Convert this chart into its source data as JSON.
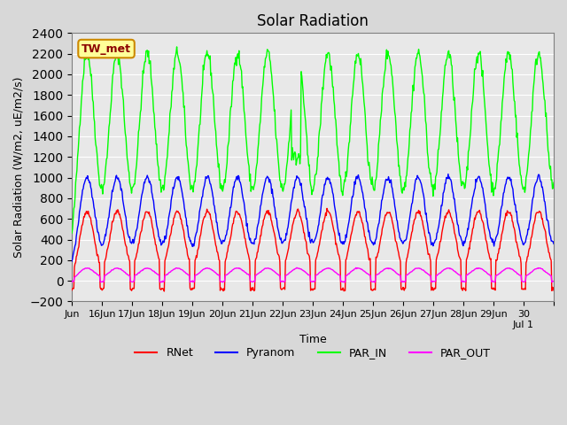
{
  "title": "Solar Radiation",
  "ylabel": "Solar Radiation (W/m2, uE/m2/s)",
  "xlabel": "Time",
  "ylim": [
    -200,
    2400
  ],
  "yticks": [
    -200,
    0,
    200,
    400,
    600,
    800,
    1000,
    1200,
    1400,
    1600,
    1800,
    2000,
    2200,
    2400
  ],
  "annotation_text": "TW_met",
  "annotation_box_facecolor": "#FFFF99",
  "annotation_box_edgecolor": "#CC8800",
  "legend_entries": [
    "RNet",
    "Pyranom",
    "PAR_IN",
    "PAR_OUT"
  ],
  "line_colors": {
    "RNet": "red",
    "Pyranom": "blue",
    "PAR_IN": "lime",
    "PAR_OUT": "magenta"
  },
  "fig_facecolor": "#D8D8D8",
  "ax_facecolor": "#E8E8E8",
  "grid_color": "white",
  "peak_PAR_IN": 2200,
  "peak_Pyranom": 1000,
  "peak_RNet": 750,
  "peak_PAR_OUT": 130,
  "night_RNet": -80,
  "night_PAR_OUT": -8
}
